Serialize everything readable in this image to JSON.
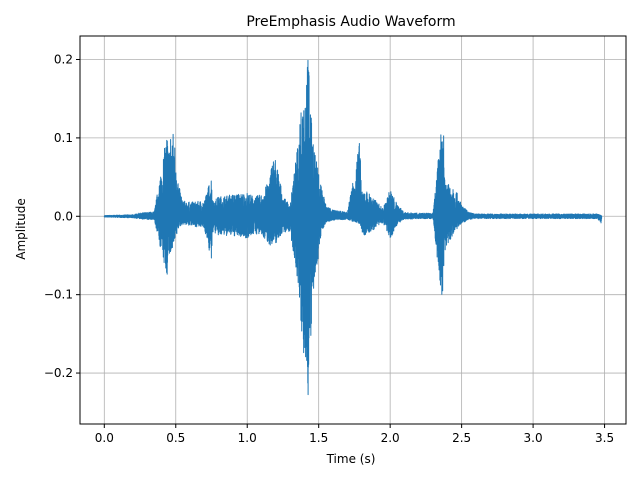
{
  "chart_data": {
    "type": "line",
    "title": "PreEmphasis Audio Waveform",
    "xlabel": "Time (s)",
    "ylabel": "Amplitude",
    "xlim": [
      -0.17,
      3.65
    ],
    "ylim": [
      -0.265,
      0.23
    ],
    "xticks": [
      {
        "value": 0.0,
        "label": "0.0"
      },
      {
        "value": 0.5,
        "label": "0.5"
      },
      {
        "value": 1.0,
        "label": "1.0"
      },
      {
        "value": 1.5,
        "label": "1.5"
      },
      {
        "value": 2.0,
        "label": "2.0"
      },
      {
        "value": 2.5,
        "label": "2.5"
      },
      {
        "value": 3.0,
        "label": "3.0"
      },
      {
        "value": 3.5,
        "label": "3.5"
      }
    ],
    "yticks": [
      {
        "value": -0.2,
        "label": "−0.2"
      },
      {
        "value": -0.1,
        "label": "−0.1"
      },
      {
        "value": 0.0,
        "label": "0.0"
      },
      {
        "value": 0.1,
        "label": "0.1"
      },
      {
        "value": 0.2,
        "label": "0.2"
      }
    ],
    "grid": true,
    "line_color": "#1f77b4",
    "series": [
      {
        "x": [
          0.0,
          0.2,
          0.24,
          0.3,
          0.35,
          0.44,
          0.445,
          0.45,
          0.46,
          0.48,
          0.5,
          0.52,
          0.55,
          0.6,
          0.7,
          0.75,
          0.76,
          0.8,
          0.9,
          1.0,
          1.05,
          1.1,
          1.15,
          1.18,
          1.2,
          1.25,
          1.3,
          1.36,
          1.38,
          1.4,
          1.42,
          1.43,
          1.45,
          1.48,
          1.5,
          1.52,
          1.55,
          1.6,
          1.7,
          1.79,
          1.8,
          1.82,
          1.85,
          1.9,
          1.95,
          2.0,
          2.05,
          2.1,
          2.2,
          2.3,
          2.37,
          2.38,
          2.39,
          2.42,
          2.45,
          2.5,
          2.55,
          2.6,
          3.0,
          3.3,
          3.45,
          3.48
        ],
        "y_max": [
          0.001,
          0.002,
          0.004,
          0.005,
          0.006,
          0.108,
          0.1,
          0.08,
          0.105,
          0.11,
          0.085,
          0.04,
          0.02,
          0.018,
          0.02,
          0.052,
          0.02,
          0.025,
          0.028,
          0.03,
          0.025,
          0.028,
          0.045,
          0.075,
          0.075,
          0.025,
          0.015,
          0.1,
          0.17,
          0.155,
          0.2,
          0.207,
          0.12,
          0.075,
          0.055,
          0.04,
          0.015,
          0.008,
          0.005,
          0.1,
          0.03,
          0.035,
          0.03,
          0.02,
          0.01,
          0.035,
          0.015,
          0.005,
          0.004,
          0.004,
          0.137,
          0.055,
          0.05,
          0.045,
          0.038,
          0.015,
          0.005,
          0.003,
          0.003,
          0.003,
          0.003,
          0.001
        ],
        "y_min": [
          -0.001,
          -0.002,
          -0.003,
          -0.004,
          -0.005,
          -0.08,
          -0.04,
          -0.055,
          -0.05,
          -0.045,
          -0.03,
          -0.015,
          -0.01,
          -0.012,
          -0.015,
          -0.06,
          -0.02,
          -0.025,
          -0.025,
          -0.028,
          -0.022,
          -0.025,
          -0.035,
          -0.04,
          -0.035,
          -0.02,
          -0.02,
          -0.09,
          -0.185,
          -0.18,
          -0.22,
          -0.242,
          -0.14,
          -0.07,
          -0.05,
          -0.02,
          -0.008,
          -0.005,
          -0.004,
          -0.01,
          -0.02,
          -0.025,
          -0.022,
          -0.015,
          -0.008,
          -0.03,
          -0.01,
          -0.004,
          -0.003,
          -0.003,
          -0.125,
          -0.05,
          -0.04,
          -0.03,
          -0.02,
          -0.01,
          -0.004,
          -0.003,
          -0.003,
          -0.003,
          -0.003,
          -0.01
        ]
      }
    ]
  }
}
